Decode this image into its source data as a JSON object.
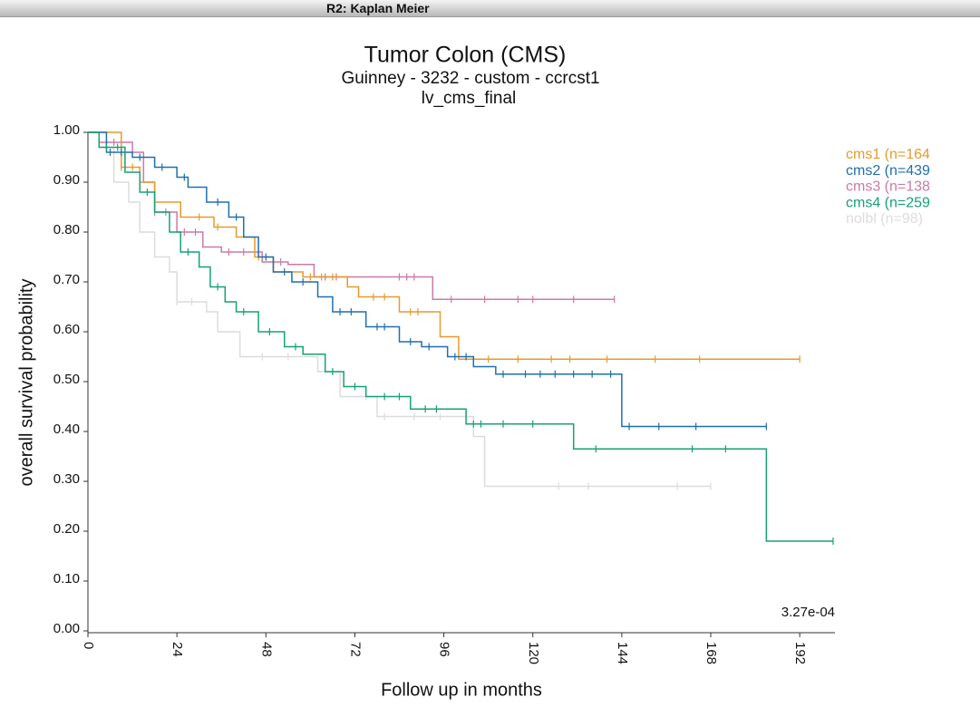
{
  "window_title": "R2: Kaplan Meier",
  "chart_data": {
    "type": "kaplan-meier",
    "title": "Tumor Colon (CMS)",
    "subtitle": "Guinney - 3232 - custom - ccrcst1",
    "subtitle2": "lv_cms_final",
    "x_label": "Follow up in months",
    "y_label": "overall survival probability",
    "annotation": "3.27e-04",
    "xlim": [
      0,
      201.5
    ],
    "ylim": [
      0,
      1
    ],
    "xticks": [
      0,
      24,
      48,
      72,
      96,
      120,
      144,
      168,
      192
    ],
    "yticks": [
      {
        "value": 0,
        "label": "0.00"
      },
      {
        "value": 0.1,
        "label": "0.10"
      },
      {
        "value": 0.2,
        "label": "0.20"
      },
      {
        "value": 0.3,
        "label": "0.30"
      },
      {
        "value": 0.4,
        "label": "0.40"
      },
      {
        "value": 0.5,
        "label": "0.50"
      },
      {
        "value": 0.6,
        "label": "0.60"
      },
      {
        "value": 0.7,
        "label": "0.70"
      },
      {
        "value": 0.8,
        "label": "0.80"
      },
      {
        "value": 0.9,
        "label": "0.90"
      },
      {
        "value": 1,
        "label": "1.00"
      }
    ],
    "legend": "top-right",
    "series": [
      {
        "name": "nolbl (n=98)",
        "color": "#dcdcdc",
        "x": [
          0,
          3,
          7,
          11,
          14,
          18,
          22,
          24,
          32,
          35,
          41,
          62,
          68,
          78,
          104,
          107,
          168
        ],
        "values": [
          1,
          0.97,
          0.9,
          0.86,
          0.8,
          0.75,
          0.72,
          0.66,
          0.64,
          0.6,
          0.55,
          0.52,
          0.47,
          0.43,
          0.39,
          0.29,
          0.29
        ],
        "censor_x": [
          24,
          28,
          47,
          54,
          75,
          80,
          88,
          95,
          127,
          135,
          159,
          168
        ]
      },
      {
        "name": "cms3 (n=138",
        "color": "#cc79a7",
        "x": [
          0,
          3,
          12,
          15,
          18,
          24,
          31,
          36,
          47,
          54,
          61,
          93,
          142
        ],
        "values": [
          1,
          0.98,
          0.96,
          0.9,
          0.84,
          0.8,
          0.77,
          0.76,
          0.74,
          0.735,
          0.71,
          0.665,
          0.665
        ],
        "censor_x": [
          5,
          7,
          18,
          21,
          26,
          29,
          38,
          42,
          50,
          52,
          64,
          67,
          84,
          86,
          88,
          98,
          107,
          116,
          120,
          131,
          142
        ]
      },
      {
        "name": "cms1 (n=164",
        "color": "#e69a2e",
        "x": [
          0,
          9,
          14,
          18,
          25,
          34,
          40,
          45,
          50,
          58,
          70,
          73,
          84,
          95,
          100,
          192
        ],
        "values": [
          1,
          0.93,
          0.9,
          0.86,
          0.83,
          0.81,
          0.79,
          0.75,
          0.72,
          0.71,
          0.69,
          0.67,
          0.64,
          0.59,
          0.545,
          0.545
        ],
        "censor_x": [
          9,
          12,
          30,
          35,
          46,
          60,
          63,
          66,
          77,
          80,
          87,
          89,
          108,
          116,
          125,
          130,
          140,
          153,
          165,
          192
        ]
      },
      {
        "name": "cms2 (n=439",
        "color": "#1f6fad",
        "x": [
          0,
          5,
          12,
          18,
          24,
          27,
          32,
          38,
          42,
          46,
          50,
          55,
          62,
          66,
          75,
          84,
          90,
          97,
          104,
          110,
          144,
          183
        ],
        "values": [
          1,
          0.96,
          0.95,
          0.93,
          0.91,
          0.89,
          0.86,
          0.83,
          0.79,
          0.75,
          0.72,
          0.7,
          0.67,
          0.64,
          0.61,
          0.58,
          0.57,
          0.55,
          0.53,
          0.515,
          0.41,
          0.41
        ],
        "censor_x": [
          6,
          9,
          14,
          20,
          26,
          35,
          40,
          48,
          53,
          58,
          68,
          71,
          78,
          80,
          87,
          92,
          99,
          102,
          112,
          118,
          122,
          126,
          131,
          136,
          141,
          146,
          154,
          164,
          183
        ]
      },
      {
        "name": "cms4 (n=259",
        "color": "#17a077",
        "x": [
          0,
          3,
          10,
          14,
          18,
          22,
          25,
          30,
          33,
          37,
          40,
          46,
          53,
          58,
          64,
          69,
          75,
          87,
          102,
          131,
          183,
          201
        ],
        "values": [
          1,
          0.97,
          0.92,
          0.88,
          0.84,
          0.8,
          0.76,
          0.73,
          0.69,
          0.66,
          0.64,
          0.6,
          0.57,
          0.555,
          0.52,
          0.49,
          0.47,
          0.445,
          0.415,
          0.365,
          0.18,
          0.18
        ],
        "censor_x": [
          5,
          8,
          16,
          27,
          35,
          42,
          49,
          56,
          66,
          72,
          80,
          84,
          91,
          94,
          104,
          106,
          112,
          120,
          137,
          163,
          172,
          201
        ]
      }
    ]
  }
}
